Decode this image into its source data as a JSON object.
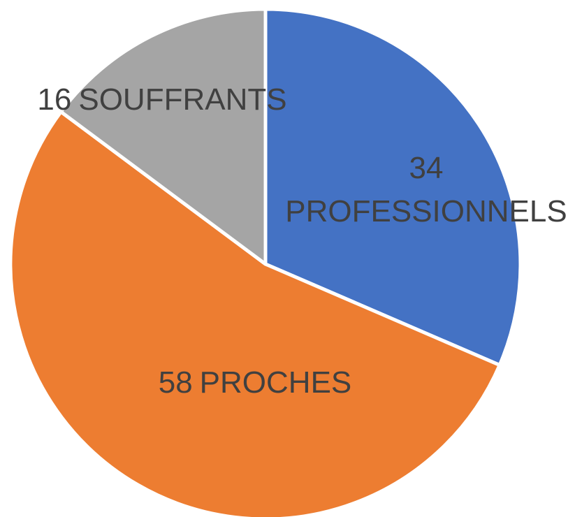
{
  "chart_data": {
    "type": "pie",
    "categories": [
      "PROFESSIONNELS",
      "PROCHES",
      "SOUFFRANTS"
    ],
    "values": [
      34,
      58,
      16
    ],
    "colors": [
      "#4472c4",
      "#ed7d31",
      "#a5a5a5"
    ]
  }
}
